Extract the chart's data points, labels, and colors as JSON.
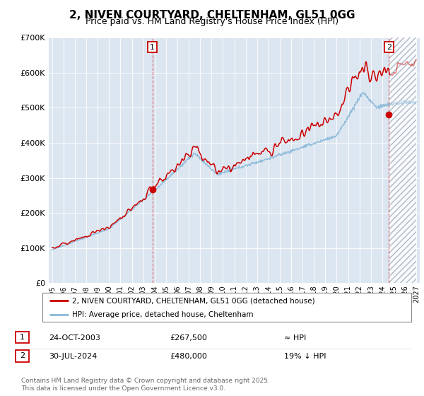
{
  "title": "2, NIVEN COURTYARD, CHELTENHAM, GL51 0GG",
  "subtitle": "Price paid vs. HM Land Registry's House Price Index (HPI)",
  "ylim": [
    0,
    700000
  ],
  "yticks": [
    0,
    100000,
    200000,
    300000,
    400000,
    500000,
    600000,
    700000
  ],
  "ytick_labels": [
    "£0",
    "£100K",
    "£200K",
    "£300K",
    "£400K",
    "£500K",
    "£600K",
    "£700K"
  ],
  "xlim_start": 1994.7,
  "xlim_end": 2027.3,
  "xticks": [
    1995,
    1996,
    1997,
    1998,
    1999,
    2000,
    2001,
    2002,
    2003,
    2004,
    2005,
    2006,
    2007,
    2008,
    2009,
    2010,
    2011,
    2012,
    2013,
    2014,
    2015,
    2016,
    2017,
    2018,
    2019,
    2020,
    2021,
    2022,
    2023,
    2024,
    2025,
    2026,
    2027
  ],
  "bg_color": "#dce6f1",
  "line_color_hpi": "#89b8d8",
  "line_color_price": "#cc0000",
  "purchase1_x": 2003.81,
  "purchase1_y": 267500,
  "purchase2_x": 2024.58,
  "purchase2_y": 480000,
  "legend_line1": "2, NIVEN COURTYARD, CHELTENHAM, GL51 0GG (detached house)",
  "legend_line2": "HPI: Average price, detached house, Cheltenham",
  "table_row1": [
    "1",
    "24-OCT-2003",
    "£267,500",
    "≈ HPI"
  ],
  "table_row2": [
    "2",
    "30-JUL-2024",
    "£480,000",
    "19% ↓ HPI"
  ],
  "footer": "Contains HM Land Registry data © Crown copyright and database right 2025.\nThis data is licensed under the Open Government Licence v3.0."
}
